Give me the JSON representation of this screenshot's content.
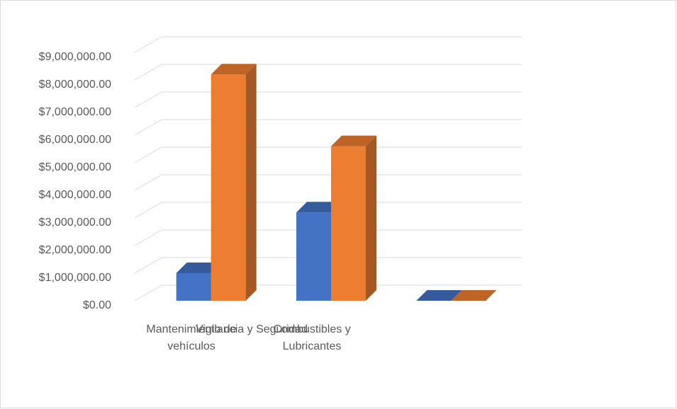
{
  "chart_data": {
    "type": "bar3d",
    "categories": [
      "Mantenimiento de vehículos",
      "Combustibles y Lubricantes",
      "Vigilancia y Seguridad"
    ],
    "series": [
      {
        "color": "#4472c4",
        "values": [
          1000000,
          3200000,
          0
        ]
      },
      {
        "color": "#ed7d31",
        "values": [
          8200000,
          5600000,
          0
        ]
      }
    ],
    "ylim": [
      0,
      9000000
    ],
    "yticks": [
      {
        "value": 0,
        "label": "$0.00"
      },
      {
        "value": 1000000,
        "label": "$1,000,000.00"
      },
      {
        "value": 2000000,
        "label": "$2,000,000.00"
      },
      {
        "value": 3000000,
        "label": "$3,000,000.00"
      },
      {
        "value": 4000000,
        "label": "$4,000,000.00"
      },
      {
        "value": 5000000,
        "label": "$5,000,000.00"
      },
      {
        "value": 6000000,
        "label": "$6,000,000.00"
      },
      {
        "value": 7000000,
        "label": "$7,000,000.00"
      },
      {
        "value": 8000000,
        "label": "$8,000,000.00"
      },
      {
        "value": 9000000,
        "label": "$9,000,000.00"
      }
    ],
    "grid": true
  }
}
